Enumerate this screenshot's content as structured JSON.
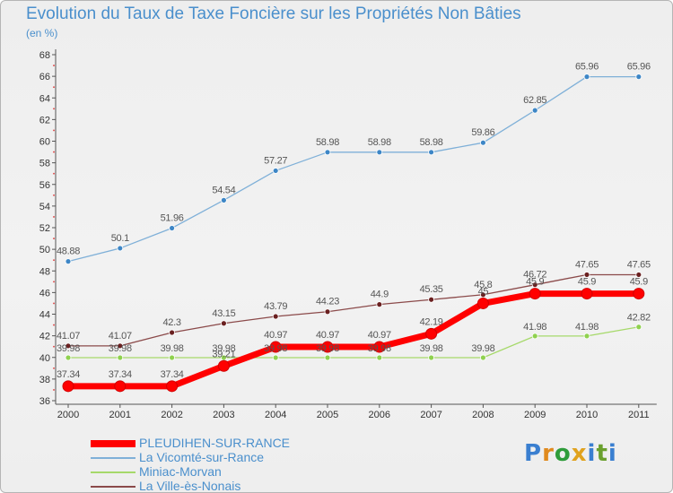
{
  "chart_data": {
    "type": "line",
    "title": "Evolution du Taux de Taxe Foncière sur les Propriétés Non Bâties",
    "unit_label": "(en %)",
    "xlabel": "",
    "ylabel": "",
    "ylim": [
      36,
      68
    ],
    "y_ticks": [
      36,
      38,
      40,
      42,
      44,
      46,
      48,
      50,
      52,
      54,
      56,
      58,
      60,
      62,
      64,
      66,
      68
    ],
    "x": [
      "2000",
      "2001",
      "2002",
      "2003",
      "2004",
      "2005",
      "2006",
      "2007",
      "2008",
      "2009",
      "2010",
      "2011"
    ],
    "grid": false,
    "legend_position": "bottom-left",
    "series": [
      {
        "name": "PLEUDIHEN-SUR-RANCE",
        "color": "#ff0000",
        "values": [
          37.34,
          37.34,
          37.34,
          39.21,
          40.97,
          40.97,
          40.97,
          42.19,
          45.0,
          45.9,
          45.9,
          45.9
        ],
        "labels": [
          "37.34",
          "37.34",
          "37.34",
          "39.21",
          "40.97",
          "40.97",
          "40.97",
          "42.19",
          "45",
          "45.9",
          "45.9",
          "45.9"
        ]
      },
      {
        "name": "La Vicomté-sur-Rance",
        "color": "#7fb0d8",
        "values": [
          48.88,
          50.1,
          51.96,
          54.54,
          57.27,
          58.98,
          58.98,
          58.98,
          59.86,
          62.85,
          65.96,
          65.96
        ],
        "labels": [
          "48.88",
          "50.1",
          "51.96",
          "54.54",
          "57.27",
          "58.98",
          "58.98",
          "58.98",
          "59.86",
          "62.85",
          "65.96",
          "65.96"
        ]
      },
      {
        "name": "Miniac-Morvan",
        "color": "#a6d96a",
        "values": [
          39.98,
          39.98,
          39.98,
          39.98,
          39.98,
          39.98,
          39.98,
          39.98,
          39.98,
          41.98,
          41.98,
          42.82
        ],
        "labels": [
          "39.98",
          "39.98",
          "39.98",
          "39.98",
          "39.98",
          "39.98",
          "39.98",
          "39.98",
          "39.98",
          "41.98",
          "41.98",
          "42.82"
        ]
      },
      {
        "name": "La Ville-ès-Nonais",
        "color": "#8b4a4a",
        "values": [
          41.07,
          41.07,
          42.3,
          43.15,
          43.79,
          44.23,
          44.9,
          45.35,
          45.8,
          46.72,
          47.65,
          47.65
        ],
        "labels": [
          "41.07",
          "41.07",
          "42.3",
          "43.15",
          "43.79",
          "44.23",
          "44.9",
          "45.35",
          "45.8",
          "46.72",
          "47.65",
          "47.65"
        ]
      }
    ]
  },
  "legend": {
    "items": [
      {
        "label": "PLEUDIHEN-SUR-RANCE",
        "color": "#ff0000"
      },
      {
        "label": "La Vicomté-sur-Rance",
        "color": "#7fb0d8"
      },
      {
        "label": "Miniac-Morvan",
        "color": "#a6d96a"
      },
      {
        "label": "La Ville-ès-Nonais",
        "color": "#8b4a4a"
      }
    ]
  },
  "brand": {
    "letters": [
      "P",
      "r",
      "o",
      "x",
      "i",
      "t",
      "i"
    ],
    "colors": [
      "#3a7fd0",
      "#e08a1e",
      "#2e9c3a",
      "#e0a21e",
      "#3a7fd0",
      "#6aa02e",
      "#3a7fd0"
    ]
  }
}
